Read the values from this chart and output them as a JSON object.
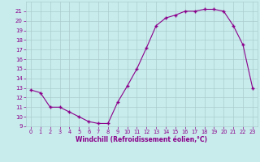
{
  "x": [
    0,
    1,
    2,
    3,
    4,
    5,
    6,
    7,
    8,
    9,
    10,
    11,
    12,
    13,
    14,
    15,
    16,
    17,
    18,
    19,
    20,
    21,
    22,
    23
  ],
  "y": [
    12.8,
    12.5,
    11.0,
    11.0,
    10.5,
    10.0,
    9.5,
    9.3,
    9.3,
    11.5,
    13.2,
    15.0,
    17.2,
    19.5,
    20.3,
    20.6,
    21.0,
    21.0,
    21.2,
    21.2,
    21.0,
    19.5,
    17.5,
    13.0
  ],
  "line_color": "#8B008B",
  "marker": "P",
  "marker_size": 2.5,
  "background_color": "#c8ecec",
  "grid_color": "#aacccc",
  "xlabel": "Windchill (Refroidissement éolien,°C)",
  "xlabel_color": "#8B008B",
  "tick_color": "#8B008B",
  "ylim": [
    9,
    22
  ],
  "xlim": [
    -0.5,
    23.5
  ],
  "yticks": [
    9,
    10,
    11,
    12,
    13,
    14,
    15,
    16,
    17,
    18,
    19,
    20,
    21
  ],
  "xticks": [
    0,
    1,
    2,
    3,
    4,
    5,
    6,
    7,
    8,
    9,
    10,
    11,
    12,
    13,
    14,
    15,
    16,
    17,
    18,
    19,
    20,
    21,
    22,
    23
  ]
}
